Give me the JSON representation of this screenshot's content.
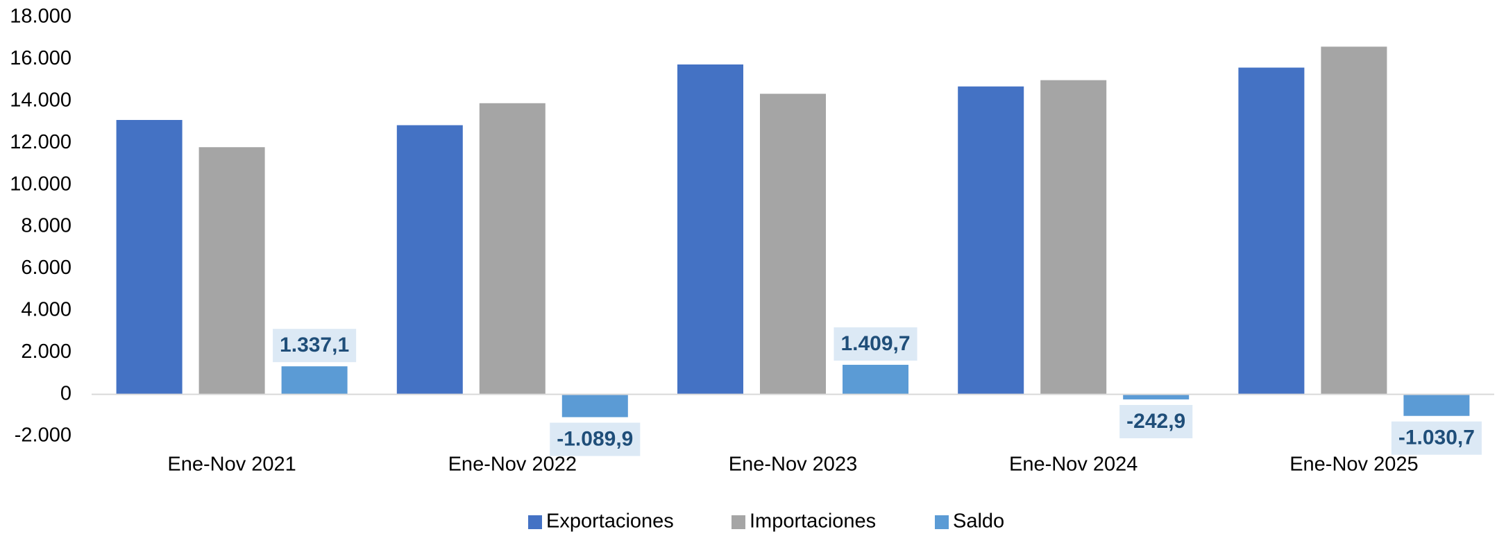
{
  "chart_data": {
    "type": "bar",
    "categories": [
      "Ene-Nov 2021",
      "Ene-Nov 2022",
      "Ene-Nov 2023",
      "Ene-Nov 2024",
      "Ene-Nov 2025"
    ],
    "series": [
      {
        "name": "Exportaciones",
        "color": "#4472c4",
        "values": [
          13100,
          12850,
          15750,
          14700,
          15600
        ]
      },
      {
        "name": "Importaciones",
        "color": "#a5a5a5",
        "values": [
          11800,
          13900,
          14350,
          15000,
          16600
        ]
      },
      {
        "name": "Saldo",
        "color": "#5b9bd5",
        "values": [
          1337.1,
          -1089.9,
          1409.7,
          -242.9,
          -1030.7
        ],
        "value_labels": [
          "1.337,1",
          "-1.089,9",
          "1.409,7",
          "-242,9",
          "-1.030,7"
        ]
      }
    ],
    "ylim": [
      -2000,
      18000
    ],
    "yticks": [
      {
        "value": -2000,
        "label": "-2.000"
      },
      0,
      {
        "value": 2000,
        "label": "2.000"
      },
      {
        "value": 4000,
        "label": "4.000"
      },
      {
        "value": 6000,
        "label": "6.000"
      },
      {
        "value": 8000,
        "label": "8.000"
      },
      {
        "value": 10000,
        "label": "10.000"
      },
      {
        "value": 12000,
        "label": "12.000"
      },
      {
        "value": 14000,
        "label": "14.000"
      },
      {
        "value": 16000,
        "label": "16.000"
      },
      {
        "value": 18000,
        "label": "18.000"
      }
    ],
    "legend": "bottom"
  }
}
